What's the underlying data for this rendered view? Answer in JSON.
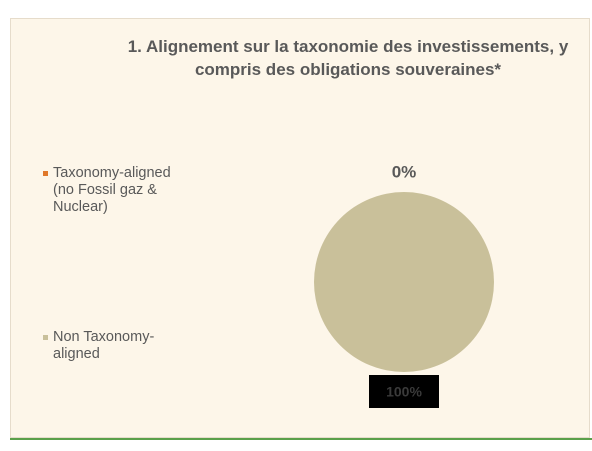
{
  "chart_data": {
    "type": "pie",
    "title": "1. Alignement sur la taxonomie des investissements, y compris des obligations souveraines*",
    "categories": [
      "Taxonomy-aligned (no Fossil gaz & Nuclear)",
      "Non Taxonomy-aligned"
    ],
    "values": [
      0,
      100
    ],
    "value_labels": [
      "0%",
      "100%"
    ],
    "colors": [
      "#e0782a",
      "#c9c09a"
    ],
    "legend": "left"
  }
}
